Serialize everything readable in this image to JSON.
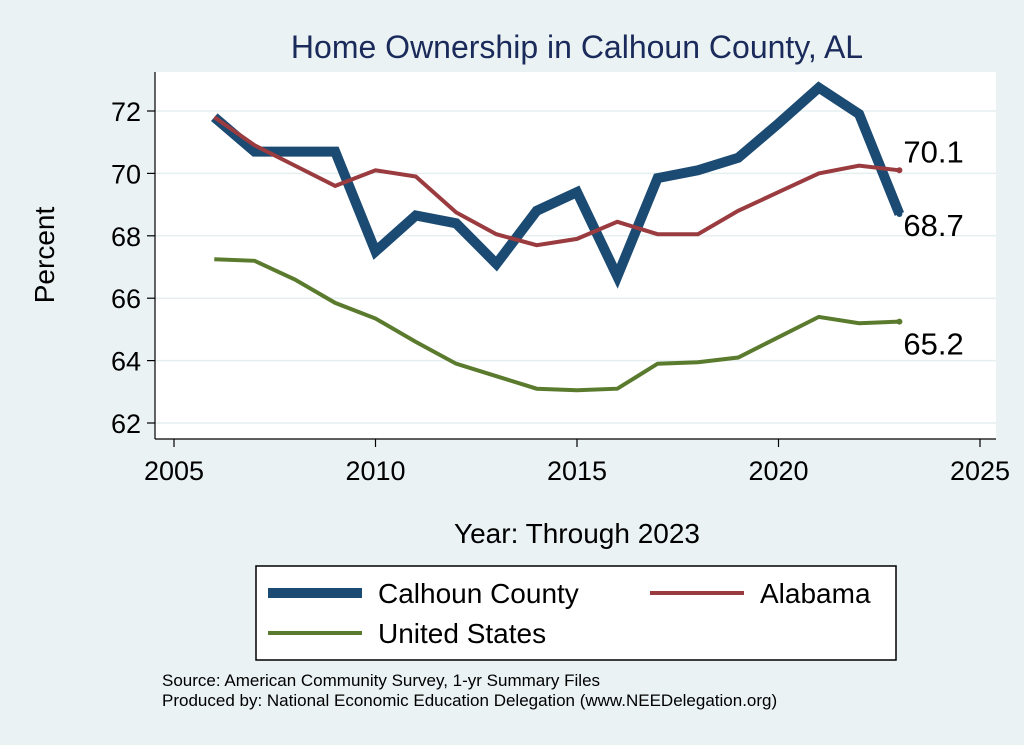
{
  "chart_data": {
    "type": "line",
    "title": "Home Ownership in Calhoun County, AL",
    "xlabel": "Year: Through 2023",
    "ylabel": "Percent",
    "xlim": [
      2005,
      2025
    ],
    "ylim": [
      62,
      73
    ],
    "xticks": [
      2005,
      2010,
      2015,
      2020,
      2025
    ],
    "yticks": [
      62,
      64,
      66,
      68,
      70,
      72
    ],
    "grid": true,
    "legend_position": "bottom",
    "x": [
      2006,
      2007,
      2008,
      2009,
      2010,
      2011,
      2012,
      2013,
      2014,
      2015,
      2016,
      2017,
      2018,
      2019,
      2020,
      2021,
      2022,
      2023
    ],
    "series": [
      {
        "name": "Calhoun County",
        "color": "#1b4a72",
        "values": [
          71.8,
          70.7,
          70.7,
          70.7,
          67.5,
          68.65,
          68.4,
          67.1,
          68.8,
          69.4,
          66.7,
          69.85,
          70.1,
          70.5,
          71.6,
          72.75,
          71.9,
          68.7
        ],
        "end_label": "68.7"
      },
      {
        "name": "Alabama",
        "color": "#9a3b3f",
        "values": [
          71.8,
          70.9,
          70.25,
          69.6,
          70.1,
          69.9,
          68.75,
          68.05,
          67.7,
          67.9,
          68.45,
          68.05,
          68.05,
          68.8,
          69.4,
          70.0,
          70.25,
          70.1
        ],
        "end_label": "70.1"
      },
      {
        "name": "United States",
        "color": "#5a7a2e",
        "values": [
          67.25,
          67.2,
          66.6,
          65.85,
          65.35,
          64.6,
          63.9,
          63.5,
          63.1,
          63.05,
          63.1,
          63.9,
          63.95,
          64.1,
          64.75,
          65.4,
          65.2,
          65.25
        ],
        "end_label": "65.2"
      }
    ],
    "notes": [
      "Source: American Community Survey, 1-yr Summary Files",
      "Produced by: National Economic Education Delegation (www.NEEDelegation.org)"
    ]
  }
}
